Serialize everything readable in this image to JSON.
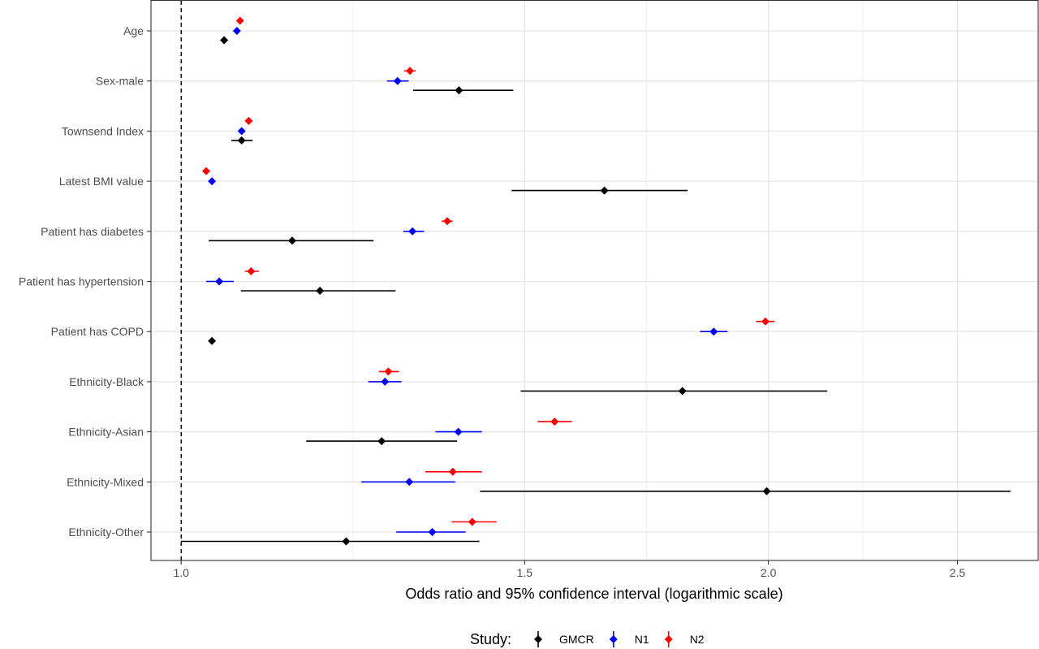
{
  "chart_data": {
    "type": "scatter",
    "subtype": "forest-plot",
    "xlabel": "Odds ratio and 95% confidence interval (logarithmic scale)",
    "ylabel": "",
    "x_scale": "log",
    "xlim": [
      0.965,
      2.75
    ],
    "x_ticks": [
      1.0,
      1.5,
      2.0,
      2.5
    ],
    "x_tick_labels": [
      "1.0",
      "1.5",
      "2.0",
      "2.5"
    ],
    "reference_line": 1.0,
    "grid": true,
    "legend": {
      "title": "Study:",
      "position": "bottom"
    },
    "categories": [
      "Age",
      "Sex-male",
      "Townsend Index",
      "Latest BMI value",
      "Patient has diabetes",
      "Patient has hypertension",
      "Patient has COPD",
      "Ethnicity-Black",
      "Ethnicity-Asian",
      "Ethnicity-Mixed",
      "Ethnicity-Other"
    ],
    "series": [
      {
        "name": "GMCR",
        "color": "#000000",
        "points": [
          {
            "est": 1.052,
            "lo": 1.052,
            "hi": 1.052
          },
          {
            "est": 1.388,
            "lo": 1.315,
            "hi": 1.48
          },
          {
            "est": 1.074,
            "lo": 1.061,
            "hi": 1.088
          },
          {
            "est": 1.648,
            "lo": 1.477,
            "hi": 1.818
          },
          {
            "est": 1.14,
            "lo": 1.033,
            "hi": 1.255
          },
          {
            "est": 1.178,
            "lo": 1.073,
            "hi": 1.288
          },
          {
            "est": 1.037,
            "lo": 1.037,
            "hi": 1.037
          },
          {
            "est": 1.807,
            "lo": 1.493,
            "hi": 2.144
          },
          {
            "est": 1.267,
            "lo": 1.159,
            "hi": 1.385
          },
          {
            "est": 1.996,
            "lo": 1.423,
            "hi": 2.662
          },
          {
            "est": 1.215,
            "lo": 1.0,
            "hi": 1.422
          }
        ]
      },
      {
        "name": "N1",
        "color": "#0000ff",
        "points": [
          {
            "est": 1.068,
            "lo": 1.068,
            "hi": 1.068
          },
          {
            "est": 1.291,
            "lo": 1.275,
            "hi": 1.308
          },
          {
            "est": 1.074,
            "lo": 1.074,
            "hi": 1.074
          },
          {
            "est": 1.037,
            "lo": 1.037,
            "hi": 1.037
          },
          {
            "est": 1.314,
            "lo": 1.3,
            "hi": 1.332
          },
          {
            "est": 1.046,
            "lo": 1.03,
            "hi": 1.064
          },
          {
            "est": 1.875,
            "lo": 1.845,
            "hi": 1.906
          },
          {
            "est": 1.272,
            "lo": 1.247,
            "hi": 1.297
          },
          {
            "est": 1.387,
            "lo": 1.35,
            "hi": 1.426
          },
          {
            "est": 1.309,
            "lo": 1.237,
            "hi": 1.382
          },
          {
            "est": 1.345,
            "lo": 1.289,
            "hi": 1.399
          }
        ]
      },
      {
        "name": "N2",
        "color": "#ff0000",
        "points": [
          {
            "est": 1.072,
            "lo": 1.072,
            "hi": 1.072
          },
          {
            "est": 1.31,
            "lo": 1.301,
            "hi": 1.319
          },
          {
            "est": 1.083,
            "lo": 1.083,
            "hi": 1.083
          },
          {
            "est": 1.03,
            "lo": 1.03,
            "hi": 1.03
          },
          {
            "est": 1.369,
            "lo": 1.36,
            "hi": 1.378
          },
          {
            "est": 1.086,
            "lo": 1.078,
            "hi": 1.096
          },
          {
            "est": 1.993,
            "lo": 1.971,
            "hi": 2.015
          },
          {
            "est": 1.277,
            "lo": 1.263,
            "hi": 1.293
          },
          {
            "est": 1.554,
            "lo": 1.523,
            "hi": 1.586
          },
          {
            "est": 1.378,
            "lo": 1.334,
            "hi": 1.426
          },
          {
            "est": 1.41,
            "lo": 1.376,
            "hi": 1.451
          }
        ]
      }
    ]
  }
}
